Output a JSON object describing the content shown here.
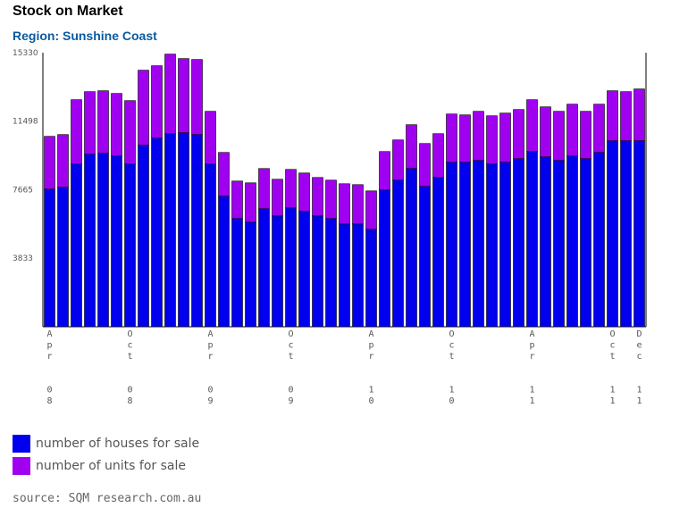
{
  "title": "Stock on Market",
  "subtitle": "Region: Sunshine Coast",
  "source": "source: SQM research.com.au",
  "colors": {
    "houses": "#0000ee",
    "units": "#a000f0",
    "axis": "#000000",
    "tick_text": "#555555"
  },
  "chart_data": {
    "type": "bar",
    "stacked": true,
    "ylim": [
      0,
      15330
    ],
    "yticks": [
      "15330",
      "11498",
      "7665",
      "3833"
    ],
    "x_labels": [
      {
        "index": 0,
        "label": "Apr 08"
      },
      {
        "index": 6,
        "label": "Oct 08"
      },
      {
        "index": 12,
        "label": "Apr 09"
      },
      {
        "index": 18,
        "label": "Oct 09"
      },
      {
        "index": 24,
        "label": "Apr 10"
      },
      {
        "index": 30,
        "label": "Oct 10"
      },
      {
        "index": 36,
        "label": "Apr 11"
      },
      {
        "index": 42,
        "label": "Oct 11"
      },
      {
        "index": 44,
        "label": "Dec 11"
      }
    ],
    "series": [
      {
        "name": "number of houses for sale",
        "values": [
          7700,
          7800,
          9100,
          9650,
          9700,
          9550,
          9100,
          10150,
          10550,
          10800,
          10850,
          10750,
          9100,
          7300,
          6050,
          5850,
          6600,
          6200,
          6650,
          6450,
          6200,
          6050,
          5750,
          5750,
          5450,
          7650,
          8200,
          8850,
          7850,
          8350,
          9200,
          9200,
          9300,
          9100,
          9200,
          9400,
          9800,
          9500,
          9300,
          9550,
          9400,
          9750,
          10400,
          10400,
          10400
        ]
      },
      {
        "name": "number of units for sale",
        "values": [
          2950,
          2950,
          3600,
          3500,
          3500,
          3500,
          3550,
          4200,
          4050,
          4450,
          4150,
          4200,
          2950,
          2450,
          2100,
          2200,
          2250,
          2050,
          2150,
          2150,
          2150,
          2150,
          2250,
          2200,
          2150,
          2150,
          2250,
          2450,
          2400,
          2450,
          2700,
          2650,
          2750,
          2700,
          2750,
          2750,
          2900,
          2800,
          2750,
          2900,
          2650,
          2700,
          2800,
          2750,
          2900
        ]
      }
    ]
  }
}
